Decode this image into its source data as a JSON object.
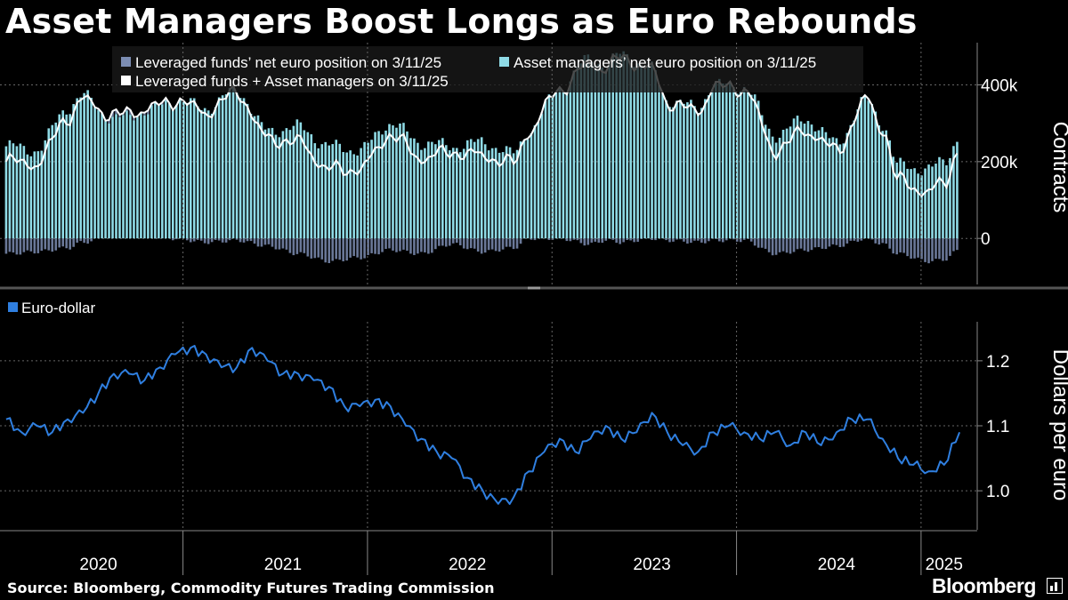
{
  "title": "Asset Managers Boost Longs as Euro Rebounds",
  "source": "Source: Bloomberg, Commodity Futures Trading Commission",
  "brand": "Bloomberg",
  "colors": {
    "background": "#000000",
    "leveraged": "#7c8db3",
    "asset": "#8fdbe6",
    "total": "#ffffff",
    "eurusd": "#2f7fe0",
    "grid": "#666666"
  },
  "chart_data": [
    {
      "type": "bar",
      "panel": "top",
      "ylabel": "Contracts",
      "yticks": [
        {
          "v": 0,
          "label": "0"
        },
        {
          "v": 200000,
          "label": "200k"
        },
        {
          "v": 400000,
          "label": "400k"
        }
      ],
      "ylim": [
        -120000,
        510000
      ],
      "grid": true,
      "legend_position": "top-left",
      "stacked": true,
      "legend": [
        {
          "name": "Leveraged funds’ net euro position on 3/11/25",
          "color": "#7c8db3"
        },
        {
          "name": "Asset managers’ net euro position on 3/11/25",
          "color": "#8fdbe6"
        },
        {
          "name": "Leveraged funds + Asset managers on 3/11/25",
          "color": "#ffffff"
        }
      ],
      "x_start": "2020-01",
      "x_end": "2025-03",
      "sampling": "weekly (interpolated from monthly keyframes)",
      "keyframes": [
        {
          "x": "2020-01",
          "asset": 240000,
          "leveraged": -40000
        },
        {
          "x": "2020-03",
          "asset": 230000,
          "leveraged": -35000
        },
        {
          "x": "2020-05",
          "asset": 340000,
          "leveraged": -25000
        },
        {
          "x": "2020-06",
          "asset": 370000,
          "leveraged": -10000
        },
        {
          "x": "2020-08",
          "asset": 310000,
          "leveraged": 10000
        },
        {
          "x": "2020-10",
          "asset": 330000,
          "leveraged": 5000
        },
        {
          "x": "2020-12",
          "asset": 360000,
          "leveraged": 0
        },
        {
          "x": "2021-02",
          "asset": 340000,
          "leveraged": -10000
        },
        {
          "x": "2021-04",
          "asset": 385000,
          "leveraged": -5000
        },
        {
          "x": "2021-06",
          "asset": 280000,
          "leveraged": -20000
        },
        {
          "x": "2021-08",
          "asset": 290000,
          "leveraged": -40000
        },
        {
          "x": "2021-10",
          "asset": 240000,
          "leveraged": -60000
        },
        {
          "x": "2021-12",
          "asset": 230000,
          "leveraged": -50000
        },
        {
          "x": "2022-02",
          "asset": 300000,
          "leveraged": -30000
        },
        {
          "x": "2022-04",
          "asset": 250000,
          "leveraged": -40000
        },
        {
          "x": "2022-06",
          "asset": 240000,
          "leveraged": -15000
        },
        {
          "x": "2022-08",
          "asset": 250000,
          "leveraged": -35000
        },
        {
          "x": "2022-10",
          "asset": 220000,
          "leveraged": -25000
        },
        {
          "x": "2022-11",
          "asset": 280000,
          "leveraged": 0
        },
        {
          "x": "2023-01",
          "asset": 390000,
          "leveraged": 0
        },
        {
          "x": "2023-03",
          "asset": 470000,
          "leveraged": -15000
        },
        {
          "x": "2023-04",
          "asset": 450000,
          "leveraged": -5000
        },
        {
          "x": "2023-05",
          "asset": 480000,
          "leveraged": -10000
        },
        {
          "x": "2023-07",
          "asset": 440000,
          "leveraged": 0
        },
        {
          "x": "2023-08",
          "asset": 360000,
          "leveraged": -5000
        },
        {
          "x": "2023-10",
          "asset": 340000,
          "leveraged": -10000
        },
        {
          "x": "2023-11",
          "asset": 400000,
          "leveraged": -5000
        },
        {
          "x": "2024-01",
          "asset": 395000,
          "leveraged": -5000
        },
        {
          "x": "2024-03",
          "asset": 270000,
          "leveraged": -40000
        },
        {
          "x": "2024-05",
          "asset": 310000,
          "leveraged": -30000
        },
        {
          "x": "2024-07",
          "asset": 250000,
          "leveraged": -20000
        },
        {
          "x": "2024-09",
          "asset": 360000,
          "leveraged": 0
        },
        {
          "x": "2024-10",
          "asset": 300000,
          "leveraged": -15000
        },
        {
          "x": "2024-11",
          "asset": 190000,
          "leveraged": -40000
        },
        {
          "x": "2025-01",
          "asset": 180000,
          "leveraged": -60000
        },
        {
          "x": "2025-02",
          "asset": 200000,
          "leveraged": -55000
        },
        {
          "x": "2025-03",
          "asset": 265000,
          "leveraged": -30000
        }
      ]
    },
    {
      "type": "line",
      "panel": "bottom",
      "ylabel": "Dollars per euro",
      "yticks": [
        {
          "v": 1.0,
          "label": "1.0"
        },
        {
          "v": 1.1,
          "label": "1.1"
        },
        {
          "v": 1.2,
          "label": "1.2"
        }
      ],
      "ylim": [
        0.94,
        1.26
      ],
      "grid": true,
      "legend_position": "top-left",
      "series": [
        {
          "name": "Euro-dollar",
          "color": "#2f7fe0",
          "points": [
            [
              "2020-01",
              1.11
            ],
            [
              "2020-02",
              1.09
            ],
            [
              "2020-03",
              1.1
            ],
            [
              "2020-04",
              1.09
            ],
            [
              "2020-05",
              1.11
            ],
            [
              "2020-06",
              1.12
            ],
            [
              "2020-07",
              1.15
            ],
            [
              "2020-08",
              1.18
            ],
            [
              "2020-09",
              1.18
            ],
            [
              "2020-10",
              1.17
            ],
            [
              "2020-11",
              1.19
            ],
            [
              "2020-12",
              1.21
            ],
            [
              "2021-01",
              1.22
            ],
            [
              "2021-02",
              1.21
            ],
            [
              "2021-03",
              1.19
            ],
            [
              "2021-04",
              1.19
            ],
            [
              "2021-05",
              1.22
            ],
            [
              "2021-06",
              1.2
            ],
            [
              "2021-07",
              1.18
            ],
            [
              "2021-08",
              1.18
            ],
            [
              "2021-09",
              1.17
            ],
            [
              "2021-10",
              1.16
            ],
            [
              "2021-11",
              1.13
            ],
            [
              "2021-12",
              1.13
            ],
            [
              "2022-01",
              1.14
            ],
            [
              "2022-02",
              1.13
            ],
            [
              "2022-03",
              1.1
            ],
            [
              "2022-04",
              1.08
            ],
            [
              "2022-05",
              1.06
            ],
            [
              "2022-06",
              1.05
            ],
            [
              "2022-07",
              1.02
            ],
            [
              "2022-08",
              1.0
            ],
            [
              "2022-09",
              0.98
            ],
            [
              "2022-10",
              0.99
            ],
            [
              "2022-11",
              1.03
            ],
            [
              "2022-12",
              1.06
            ],
            [
              "2023-01",
              1.08
            ],
            [
              "2023-02",
              1.06
            ],
            [
              "2023-03",
              1.08
            ],
            [
              "2023-04",
              1.1
            ],
            [
              "2023-05",
              1.08
            ],
            [
              "2023-06",
              1.09
            ],
            [
              "2023-07",
              1.12
            ],
            [
              "2023-08",
              1.09
            ],
            [
              "2023-09",
              1.07
            ],
            [
              "2023-10",
              1.06
            ],
            [
              "2023-11",
              1.09
            ],
            [
              "2023-12",
              1.1
            ],
            [
              "2024-01",
              1.09
            ],
            [
              "2024-02",
              1.08
            ],
            [
              "2024-03",
              1.09
            ],
            [
              "2024-04",
              1.07
            ],
            [
              "2024-05",
              1.09
            ],
            [
              "2024-06",
              1.07
            ],
            [
              "2024-07",
              1.09
            ],
            [
              "2024-08",
              1.11
            ],
            [
              "2024-09",
              1.11
            ],
            [
              "2024-10",
              1.08
            ],
            [
              "2024-11",
              1.05
            ],
            [
              "2024-12",
              1.04
            ],
            [
              "2025-01",
              1.03
            ],
            [
              "2025-02",
              1.04
            ],
            [
              "2025-03",
              1.09
            ]
          ]
        }
      ]
    }
  ],
  "x_axis": {
    "labels": [
      {
        "year": "2020",
        "center": "2020-07"
      },
      {
        "year": "2021",
        "center": "2021-07"
      },
      {
        "year": "2022",
        "center": "2022-07"
      },
      {
        "year": "2023",
        "center": "2023-07"
      },
      {
        "year": "2024",
        "center": "2024-07"
      },
      {
        "year": "2025",
        "center": "2025-02"
      }
    ],
    "year_boundaries": [
      "2021-01",
      "2022-01",
      "2023-01",
      "2024-01",
      "2025-01"
    ]
  }
}
